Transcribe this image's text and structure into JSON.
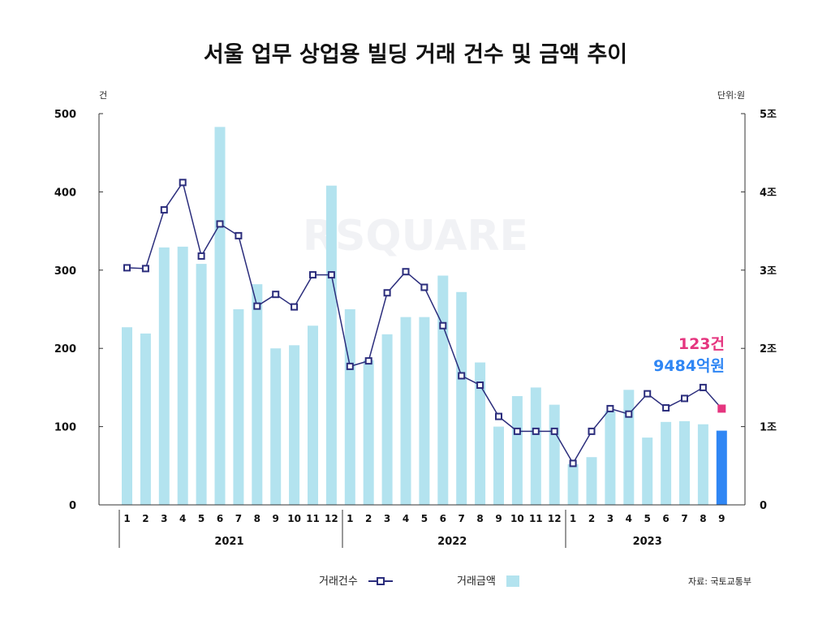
{
  "chart_data": {
    "type": "bar",
    "title": "서울 업무 상업용 빌딩 거래 건수 및 금액 추이",
    "left_unit": "건",
    "right_unit": "단위:원",
    "left_axis": {
      "min": 0,
      "max": 500,
      "ticks": [
        0,
        100,
        200,
        300,
        400,
        500
      ]
    },
    "right_axis": {
      "min": 0,
      "max": 5,
      "ticks": [
        0,
        1,
        2,
        3,
        4,
        5
      ],
      "tick_labels": [
        "0",
        "1조",
        "2조",
        "3조",
        "4조",
        "5조"
      ]
    },
    "grid": false,
    "watermark": "RSQUARE",
    "categories": [
      "1",
      "2",
      "3",
      "4",
      "5",
      "6",
      "7",
      "8",
      "9",
      "10",
      "11",
      "12",
      "1",
      "2",
      "3",
      "4",
      "5",
      "6",
      "7",
      "8",
      "9",
      "10",
      "11",
      "12",
      "1",
      "2",
      "3",
      "4",
      "5",
      "6",
      "7",
      "8",
      "9"
    ],
    "years": [
      {
        "label": "2021",
        "start": 0,
        "end": 11
      },
      {
        "label": "2022",
        "start": 12,
        "end": 23
      },
      {
        "label": "2023",
        "start": 24,
        "end": 32
      }
    ],
    "series": [
      {
        "name": "거래금액",
        "type": "bar",
        "axis": "right",
        "color": "#b3e3ef",
        "highlight_color": "#2f86f4",
        "highlight_index": 32,
        "values": [
          2.27,
          2.19,
          3.29,
          3.3,
          3.08,
          4.83,
          2.5,
          2.82,
          2.0,
          2.04,
          2.29,
          4.08,
          2.5,
          1.85,
          2.18,
          2.4,
          2.4,
          2.93,
          2.72,
          1.82,
          1.0,
          1.39,
          1.5,
          1.28,
          0.52,
          0.61,
          1.2,
          1.47,
          0.86,
          1.06,
          1.07,
          1.03,
          0.9484
        ]
      },
      {
        "name": "거래건수",
        "type": "line",
        "axis": "left",
        "color": "#2b2d7c",
        "highlight_color": "#e5357f",
        "highlight_index": 32,
        "values": [
          303,
          302,
          377,
          412,
          318,
          359,
          344,
          254,
          269,
          253,
          294,
          294,
          177,
          184,
          271,
          298,
          278,
          229,
          165,
          153,
          113,
          94,
          94,
          94,
          53,
          94,
          123,
          116,
          142,
          124,
          136,
          150,
          123
        ]
      }
    ],
    "annotations": [
      {
        "text": "123건",
        "color": "#e5357f"
      },
      {
        "text": "9484억원",
        "color": "#2f86f4"
      }
    ],
    "legend": {
      "position": "bottom-center",
      "items": [
        {
          "label": "거래건수",
          "symbol": "line-square",
          "color": "#2b2d7c"
        },
        {
          "label": "거래금액",
          "symbol": "bar",
          "color": "#b3e3ef"
        }
      ]
    },
    "source": "자료: 국토교통부"
  }
}
